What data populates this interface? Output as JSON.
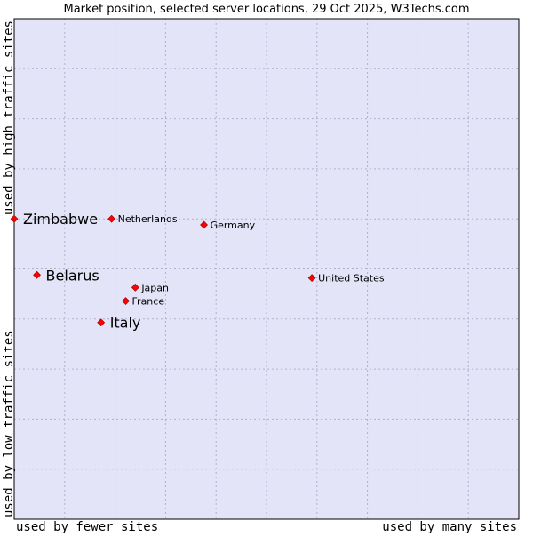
{
  "chart_data": {
    "type": "scatter",
    "title": "Market position, selected server locations, 29 Oct 2025, W3Techs.com",
    "xlabel_left": "used by fewer sites",
    "xlabel_right": "used by many sites",
    "ylabel_bottom": "used by low traffic sites",
    "ylabel_top": "used by high traffic sites",
    "xlim": [
      0,
      10
    ],
    "ylim": [
      0,
      10
    ],
    "grid": true,
    "colors": {
      "plot_background": "#e4e4f8",
      "grid": "#b0b0c8",
      "marker": "#ff0000",
      "marker_edge": "#990000"
    },
    "points": [
      {
        "name": "Zimbabwe",
        "x": 0.0,
        "y": 6.0,
        "label_size": "large"
      },
      {
        "name": "Netherlands",
        "x": 1.93,
        "y": 6.0,
        "label_size": "small"
      },
      {
        "name": "Germany",
        "x": 3.76,
        "y": 5.88,
        "label_size": "small"
      },
      {
        "name": "Belarus",
        "x": 0.45,
        "y": 4.88,
        "label_size": "large"
      },
      {
        "name": "United States",
        "x": 5.9,
        "y": 4.82,
        "label_size": "small"
      },
      {
        "name": "Japan",
        "x": 2.4,
        "y": 4.63,
        "label_size": "small"
      },
      {
        "name": "France",
        "x": 2.21,
        "y": 4.36,
        "label_size": "small"
      },
      {
        "name": "Italy",
        "x": 1.72,
        "y": 3.93,
        "label_size": "large"
      }
    ]
  }
}
